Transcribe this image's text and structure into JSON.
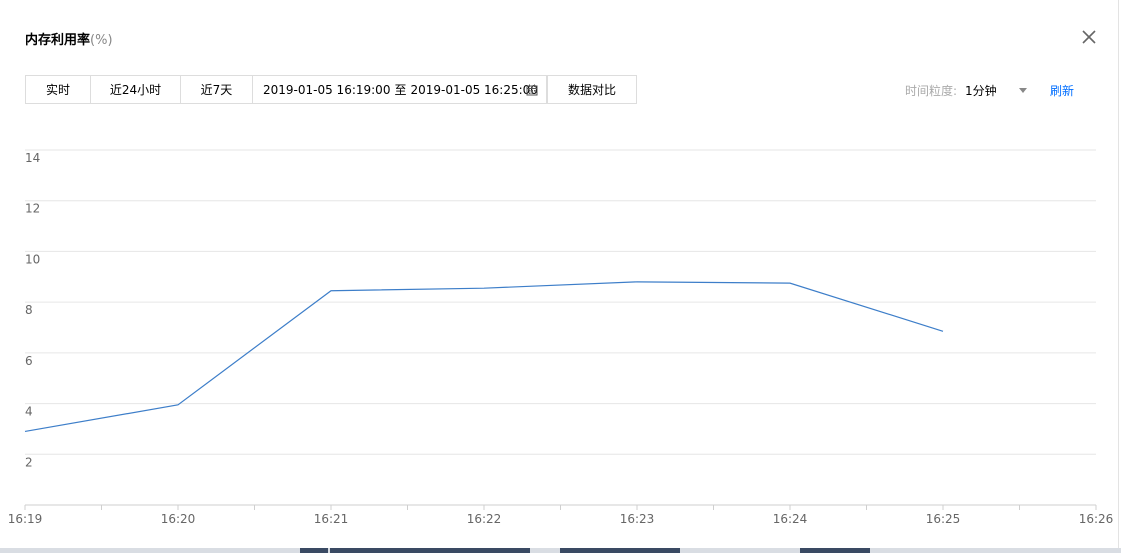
{
  "dialog": {
    "title": "内存利用率",
    "title_unit": "(%)",
    "close_icon": "close-icon"
  },
  "toolbar": {
    "realtime_label": "实时",
    "last24h_label": "近24小时",
    "last7d_label": "近7天",
    "date_start": "2019-01-05 16:19:00",
    "date_sep": "至",
    "date_end": "2019-01-05 16:25:00",
    "calendar_icon": "calendar-icon",
    "compare_label": "数据对比",
    "granularity_label": "时间粒度:",
    "granularity_value": "1分钟",
    "refresh_label": "刷新"
  },
  "colors": {
    "line": "#3d7ec9",
    "grid": "#e6e6e6",
    "axis_text": "#666666",
    "link": "#006eff"
  },
  "chart_data": {
    "type": "line",
    "x": [
      "16:19",
      "16:20",
      "16:21",
      "16:22",
      "16:23",
      "16:24",
      "16:25"
    ],
    "x_ticks": [
      "16:19",
      "16:20",
      "16:21",
      "16:22",
      "16:23",
      "16:24",
      "16:25",
      "16:26"
    ],
    "series": [
      {
        "values": [
          2.9,
          3.95,
          8.45,
          8.55,
          8.8,
          8.75,
          6.85
        ]
      }
    ],
    "y_ticks": [
      2,
      4,
      6,
      8,
      10,
      12,
      14
    ],
    "ylim": [
      0,
      14
    ],
    "grid": true,
    "title": "",
    "xlabel": "",
    "ylabel": ""
  }
}
